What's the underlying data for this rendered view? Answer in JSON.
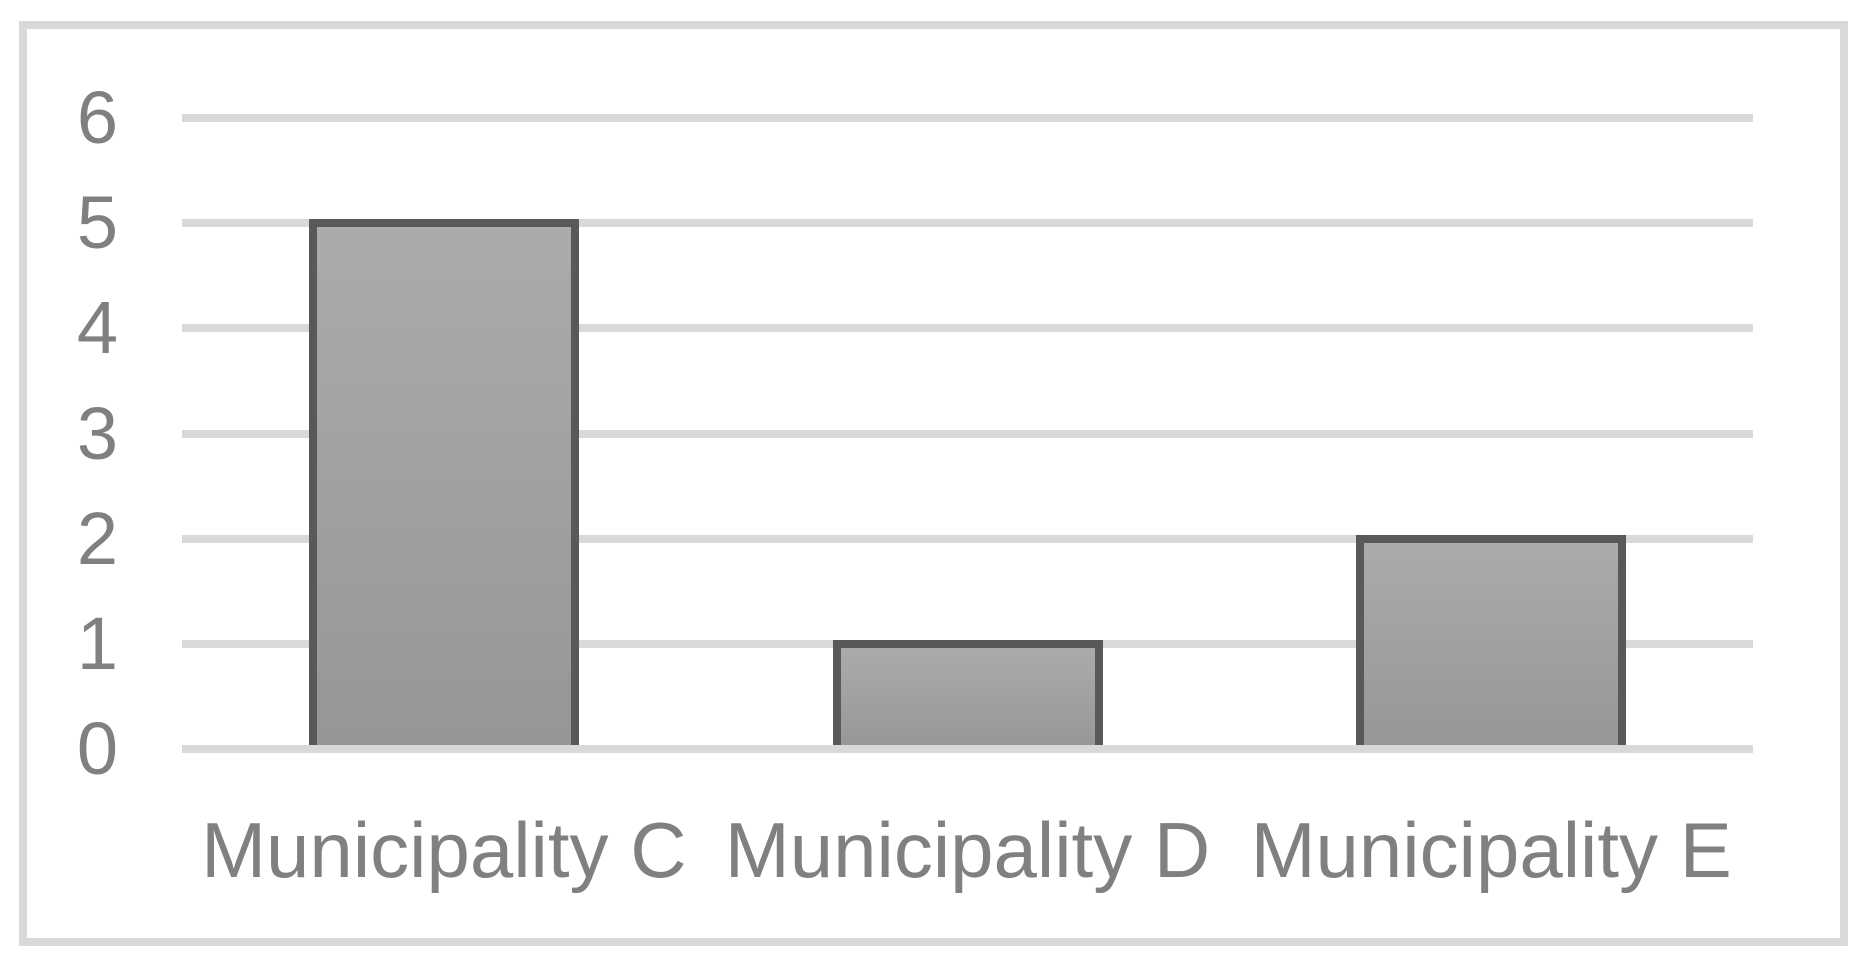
{
  "chart_data": {
    "type": "bar",
    "title": "",
    "xlabel": "",
    "ylabel": "",
    "categories": [
      "Municipality C",
      "Municipality D",
      "Municipality E"
    ],
    "values": [
      5,
      1,
      2
    ],
    "ylim": [
      0,
      6
    ],
    "yticks": [
      0,
      1,
      2,
      3,
      4,
      5,
      6
    ],
    "grid": true,
    "legend": false,
    "colors": {
      "background": "#ffffff",
      "frame_border": "#d9d9d9",
      "gridline": "#d9d9d9",
      "bar_border": "#595959",
      "bar_fill_top": "#ababab",
      "bar_fill_bottom": "#969696",
      "tick_label": "#808080",
      "category_label": "#808080"
    }
  }
}
